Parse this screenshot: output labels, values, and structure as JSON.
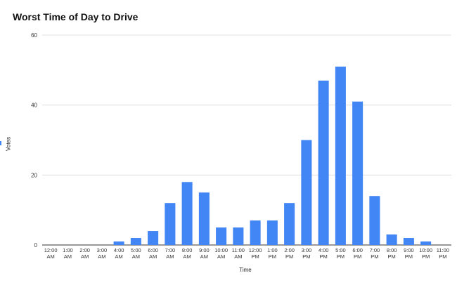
{
  "chart_data": {
    "type": "bar",
    "title": "Worst Time of Day to Drive",
    "xlabel": "Time",
    "ylabel": "Votes",
    "ylim": [
      0,
      60
    ],
    "yticks": [
      0,
      20,
      40,
      60
    ],
    "grid": true,
    "legend": "none",
    "color": "#4285f4",
    "categories": [
      [
        "12:00",
        "AM"
      ],
      [
        "1:00",
        "AM"
      ],
      [
        "2:00",
        "AM"
      ],
      [
        "3:00",
        "AM"
      ],
      [
        "4:00",
        "AM"
      ],
      [
        "5:00",
        "AM"
      ],
      [
        "6:00",
        "AM"
      ],
      [
        "7:00",
        "AM"
      ],
      [
        "8:00",
        "AM"
      ],
      [
        "9:00",
        "AM"
      ],
      [
        "10:00",
        "AM"
      ],
      [
        "11:00",
        "AM"
      ],
      [
        "12:00",
        "PM"
      ],
      [
        "1:00",
        "PM"
      ],
      [
        "2:00",
        "PM"
      ],
      [
        "3:00",
        "PM"
      ],
      [
        "4:00",
        "PM"
      ],
      [
        "5:00",
        "PM"
      ],
      [
        "6:00",
        "PM"
      ],
      [
        "7:00",
        "PM"
      ],
      [
        "8:00",
        "PM"
      ],
      [
        "9:00",
        "PM"
      ],
      [
        "10:00",
        "PM"
      ],
      [
        "11:00",
        "PM"
      ]
    ],
    "values": [
      0,
      0,
      0,
      0,
      1,
      2,
      4,
      12,
      18,
      15,
      5,
      5,
      7,
      7,
      12,
      30,
      47,
      51,
      41,
      14,
      3,
      2,
      1,
      0
    ]
  }
}
